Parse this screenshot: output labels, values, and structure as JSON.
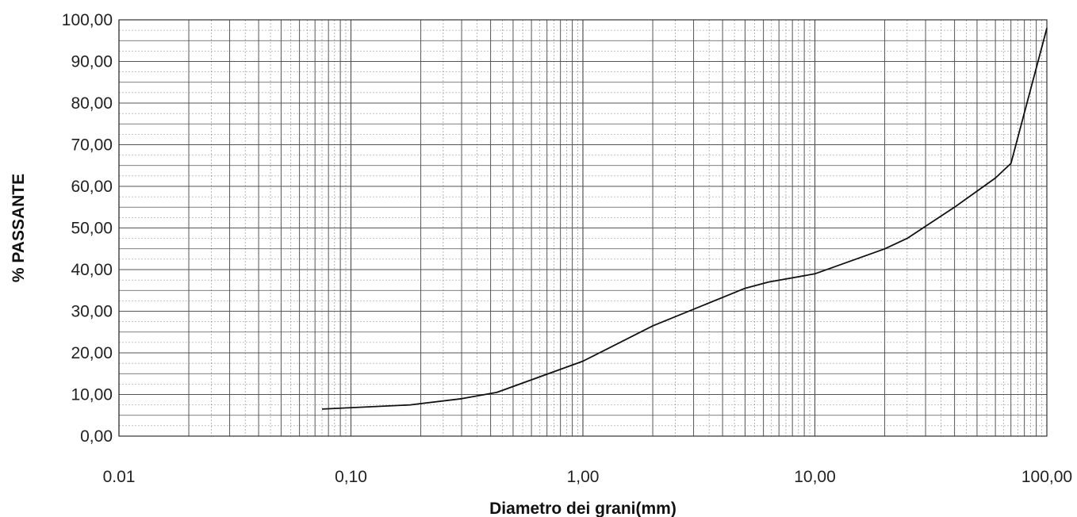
{
  "chart_data": {
    "type": "line",
    "title": "",
    "xlabel": "Diametro dei grani(mm)",
    "ylabel": "% PASSANTE",
    "x_scale": "log",
    "xlim": [
      0.01,
      100
    ],
    "ylim": [
      0,
      100
    ],
    "grid": true,
    "x_tick_labels": [
      "0.01",
      "0,10",
      "1,00",
      "10,00",
      "100,00"
    ],
    "y_tick_labels": [
      "0,00",
      "10,00",
      "20,00",
      "30,00",
      "40,00",
      "50,00",
      "60,00",
      "70,00",
      "80,00",
      "90,00",
      "100,00"
    ],
    "series": [
      {
        "x": [
          0.075,
          0.18,
          0.3,
          0.425,
          1.0,
          2.0,
          5.0,
          6.3,
          10.0,
          20.0,
          25.0,
          40.0,
          60.0,
          70.0,
          100.0
        ],
        "y": [
          6.5,
          7.5,
          9.0,
          10.5,
          18.0,
          26.5,
          35.5,
          37.0,
          39.0,
          45.0,
          47.5,
          55.0,
          62.0,
          65.5,
          98.0
        ]
      }
    ],
    "colors": {
      "line": "#111111",
      "grid": "#555555",
      "background": "#ffffff"
    }
  }
}
